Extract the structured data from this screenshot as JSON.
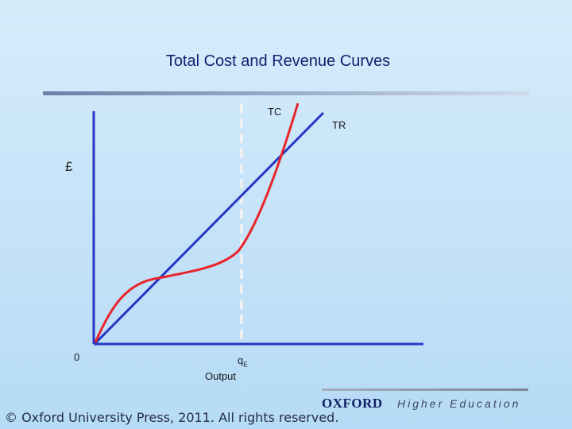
{
  "slide": {
    "title": "Total Cost and Revenue Curves"
  },
  "chart_data": {
    "type": "line",
    "title": "Total Cost and Revenue Curves",
    "ylabel": "£",
    "xlabel": "Output",
    "origin_label": "0",
    "marker": {
      "label": "q",
      "subscript": "E"
    },
    "series": [
      {
        "name": "TC",
        "color": "#e8232a"
      },
      {
        "name": "TR",
        "color": "#2536c4"
      }
    ],
    "colors": {
      "axes": "#2536c4",
      "marker_line": "#f2f2f2"
    }
  },
  "footer": {
    "copyright": "© Oxford University Press, 2011. All rights reserved.",
    "brand": "OXFORD",
    "brand_sub": "Higher Education"
  }
}
